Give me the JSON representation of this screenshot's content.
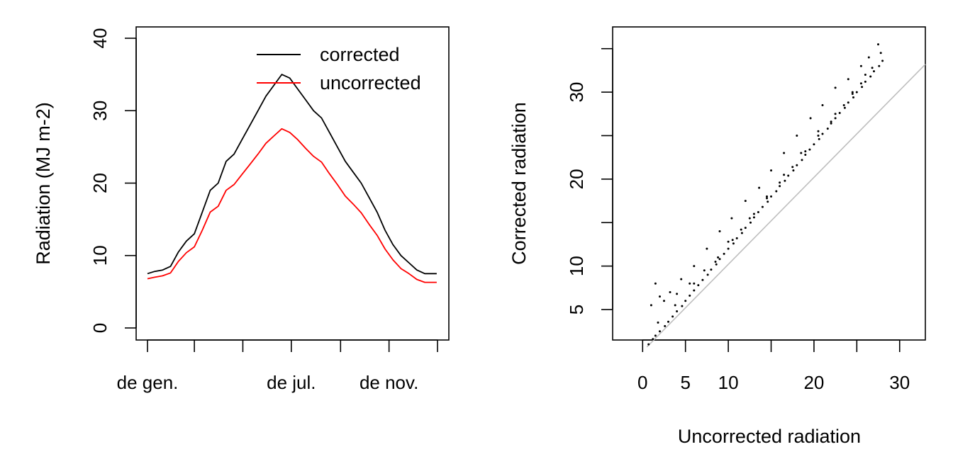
{
  "chart_data": [
    {
      "type": "line",
      "ylabel": "Radiation (MJ m-2)",
      "xlabel": "",
      "ylim": [
        0,
        40
      ],
      "yticks": [
        0,
        10,
        20,
        30,
        40
      ],
      "x_range_day": [
        1,
        365
      ],
      "xticks": [
        {
          "day": 1,
          "label": "de gen."
        },
        {
          "day": 60,
          "label": ""
        },
        {
          "day": 121,
          "label": ""
        },
        {
          "day": 182,
          "label": "de jul."
        },
        {
          "day": 244,
          "label": ""
        },
        {
          "day": 305,
          "label": "de nov."
        },
        {
          "day": 366,
          "label": ""
        }
      ],
      "legend": {
        "position": "top-right",
        "entries": [
          "corrected",
          "uncorrected"
        ]
      },
      "series": [
        {
          "name": "corrected",
          "color": "#000000",
          "x": [
            1,
            10,
            20,
            30,
            40,
            50,
            60,
            70,
            80,
            90,
            100,
            110,
            120,
            130,
            140,
            150,
            160,
            170,
            180,
            190,
            200,
            210,
            220,
            230,
            240,
            250,
            260,
            270,
            280,
            290,
            300,
            310,
            320,
            330,
            340,
            350,
            365
          ],
          "values": [
            7.5,
            7.8,
            8.0,
            8.5,
            10.5,
            12.0,
            13.0,
            16.0,
            19.0,
            20.0,
            23.0,
            24.0,
            26.0,
            28.0,
            30.0,
            32.0,
            33.5,
            35.0,
            34.5,
            33.0,
            31.5,
            30.0,
            29.0,
            27.0,
            25.0,
            23.0,
            21.5,
            20.0,
            18.0,
            16.0,
            13.5,
            11.5,
            10.0,
            9.0,
            8.0,
            7.5,
            7.5
          ]
        },
        {
          "name": "uncorrected",
          "color": "#ff0000",
          "x": [
            1,
            10,
            20,
            30,
            40,
            50,
            60,
            70,
            80,
            90,
            100,
            110,
            120,
            130,
            140,
            150,
            160,
            170,
            180,
            190,
            200,
            210,
            220,
            230,
            240,
            250,
            260,
            270,
            280,
            290,
            300,
            310,
            320,
            330,
            340,
            350,
            365
          ],
          "values": [
            6.8,
            7.0,
            7.2,
            7.6,
            9.2,
            10.4,
            11.2,
            13.5,
            16.0,
            16.8,
            19.0,
            19.8,
            21.2,
            22.6,
            24.0,
            25.5,
            26.5,
            27.5,
            27.0,
            26.0,
            24.8,
            23.7,
            22.9,
            21.3,
            19.8,
            18.2,
            17.1,
            15.9,
            14.3,
            12.8,
            10.9,
            9.4,
            8.2,
            7.5,
            6.7,
            6.3,
            6.3
          ]
        }
      ]
    },
    {
      "type": "scatter",
      "xlabel": "Uncorrected radiation",
      "ylabel": "Corrected radiation",
      "xticks": [
        0,
        5,
        10,
        20,
        30
      ],
      "yticks": [
        5,
        10,
        20,
        30
      ],
      "xlim": [
        -3.5,
        33
      ],
      "ylim": [
        1.5,
        37.5
      ],
      "reference_line": {
        "slope": 1,
        "intercept": 0,
        "color": "#bebebe"
      },
      "series": [
        {
          "name": "",
          "color": "#000000",
          "description_only_for_render": "",
          "x": [
            0.7,
            1.2,
            1.5,
            2.0,
            2.6,
            3.0,
            3.5,
            4.0,
            4.6,
            5.0,
            5.5,
            6.0,
            6.5,
            7.0,
            7.6,
            8.0,
            8.6,
            9.0,
            9.5,
            10.0,
            10.6,
            11.0,
            11.6,
            12.0,
            12.6,
            13.0,
            13.5,
            14.0,
            14.6,
            15.0,
            15.6,
            16.0,
            16.6,
            17.0,
            17.6,
            18.0,
            18.6,
            19.0,
            19.5,
            20.0,
            20.6,
            21.0,
            21.6,
            22.0,
            22.5,
            23.0,
            23.6,
            24.0,
            24.6,
            25.0,
            25.6,
            26.0,
            26.6,
            27.0,
            27.6,
            28.0,
            1.0,
            2.0,
            3.2,
            4.5,
            6.0,
            7.5,
            9.0,
            10.4,
            12.0,
            13.6,
            15.0,
            16.5,
            18.0,
            19.6,
            21.0,
            22.5,
            24.0,
            25.5,
            26.4,
            27.5,
            1.5,
            2.5,
            4.0,
            5.5,
            7.2,
            8.8,
            10.0,
            11.5,
            13.0,
            14.5,
            16.0,
            17.5,
            19.0,
            20.5,
            22.0,
            23.5,
            24.5,
            25.5,
            26.8,
            27.8,
            1.8,
            3.8,
            6.0,
            8.5,
            10.5,
            12.5,
            14.5,
            16.5,
            18.5,
            20.5,
            22.5,
            24.5,
            26.0
          ],
          "values": [
            1.0,
            1.6,
            2.0,
            2.5,
            3.1,
            3.6,
            4.2,
            4.8,
            5.4,
            6.0,
            6.6,
            7.2,
            7.8,
            8.4,
            9.0,
            9.6,
            10.2,
            10.8,
            11.4,
            12.0,
            12.6,
            13.2,
            13.8,
            14.4,
            15.0,
            15.6,
            16.2,
            16.8,
            17.4,
            18.0,
            18.6,
            19.2,
            19.8,
            20.4,
            21.0,
            21.6,
            22.2,
            22.8,
            23.4,
            24.0,
            24.6,
            25.2,
            25.8,
            26.4,
            27.0,
            27.6,
            28.2,
            28.8,
            29.4,
            30.0,
            30.6,
            31.2,
            31.8,
            32.4,
            33.0,
            33.6,
            5.5,
            6.5,
            7.0,
            8.5,
            10.0,
            12.0,
            14.0,
            15.5,
            17.5,
            19.0,
            21.0,
            23.0,
            25.0,
            27.0,
            28.5,
            30.5,
            31.5,
            33.0,
            34.0,
            35.5,
            8.0,
            6.0,
            6.8,
            8.0,
            9.5,
            11.0,
            12.8,
            14.2,
            16.0,
            17.8,
            19.6,
            21.4,
            23.2,
            25.0,
            26.6,
            28.5,
            29.8,
            31.0,
            32.8,
            34.5,
            3.5,
            5.5,
            8.0,
            10.5,
            13.0,
            15.5,
            18.0,
            20.5,
            23.0,
            25.5,
            27.5,
            30.0,
            32.0
          ]
        }
      ]
    }
  ]
}
